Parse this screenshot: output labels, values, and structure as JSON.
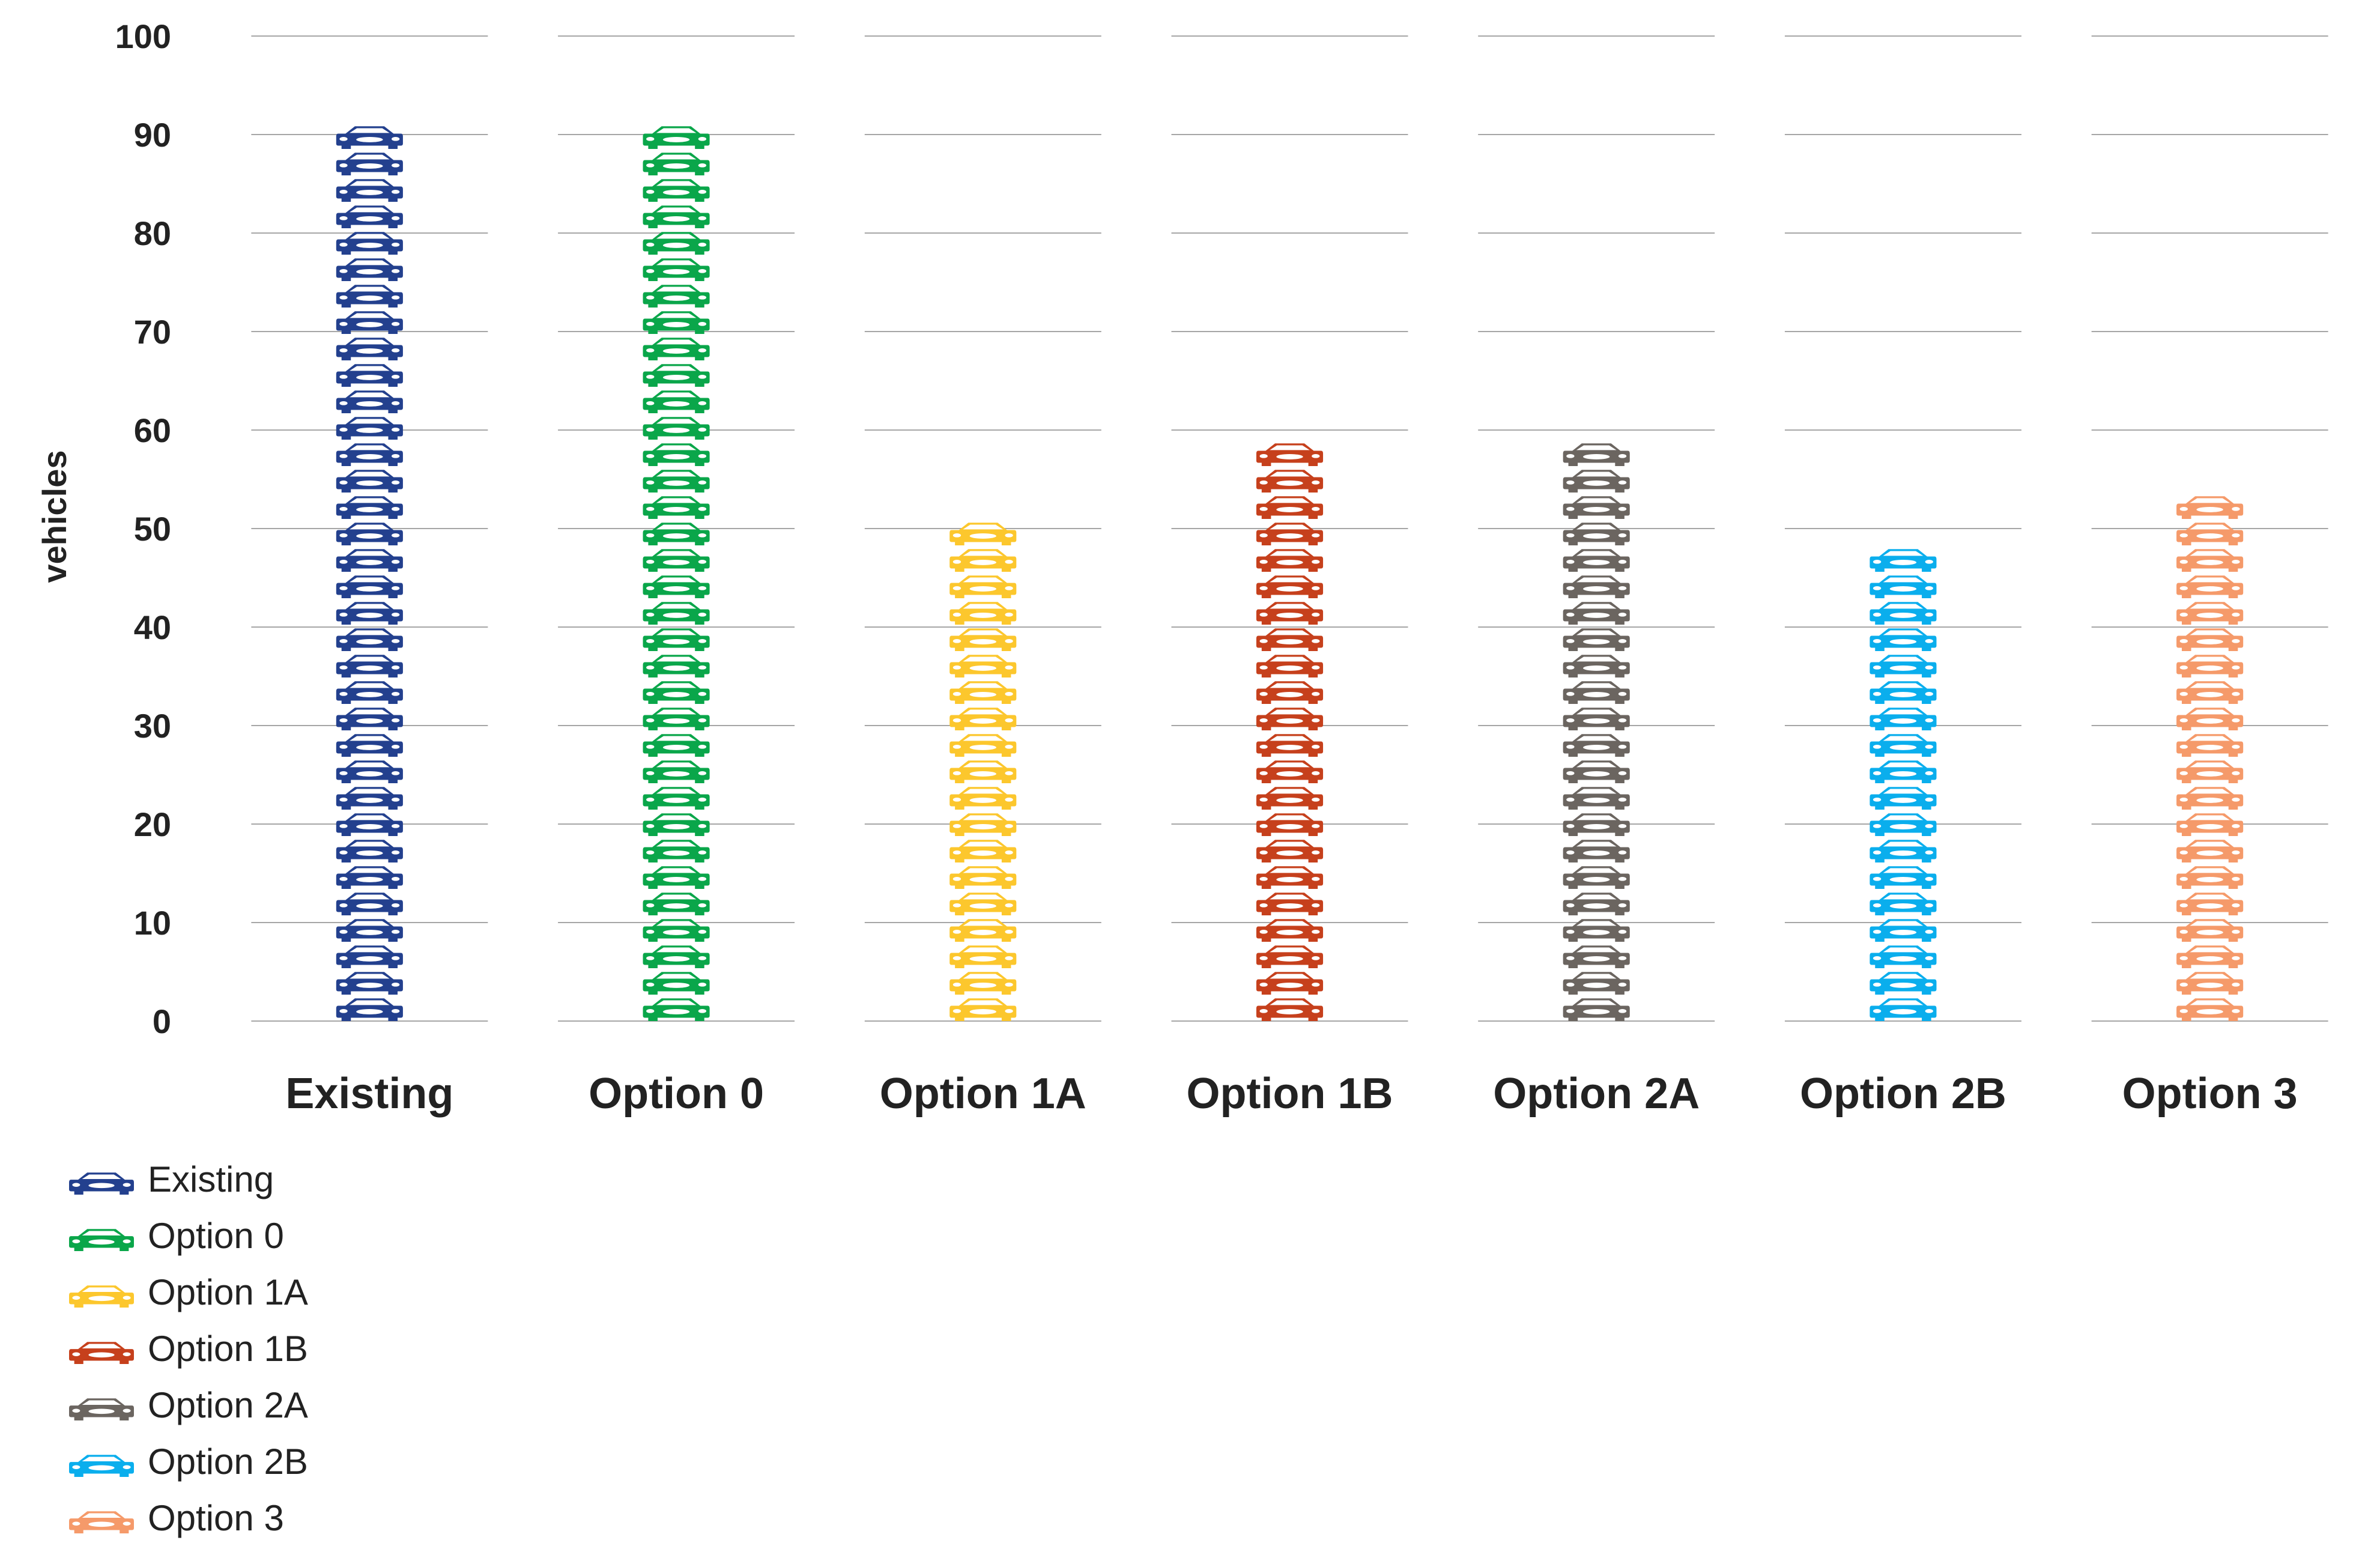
{
  "chart_data": {
    "type": "bar",
    "ylabel": "vehicles",
    "ylim": [
      0,
      100
    ],
    "yticks": [
      0,
      10,
      20,
      30,
      40,
      50,
      60,
      70,
      80,
      90,
      100
    ],
    "grid": true,
    "legend_position": "bottom-left",
    "mark": "stacked car pictograms",
    "categories": [
      "Existing",
      "Option 0",
      "Option 1A",
      "Option 1B",
      "Option 2A",
      "Option 2B",
      "Option 3"
    ],
    "series": [
      {
        "name": "Existing",
        "category": "Existing",
        "value": 90,
        "color": "#23408e"
      },
      {
        "name": "Option 0",
        "category": "Option 0",
        "value": 91,
        "color": "#0aa64a"
      },
      {
        "name": "Option 1A",
        "category": "Option 1A",
        "value": 50,
        "color": "#fcc72d"
      },
      {
        "name": "Option 1B",
        "category": "Option 1B",
        "value": 60,
        "color": "#c6401c"
      },
      {
        "name": "Option 2A",
        "category": "Option 2A",
        "value": 60,
        "color": "#6b6560"
      },
      {
        "name": "Option 2B",
        "category": "Option 2B",
        "value": 48,
        "color": "#0aaeed"
      },
      {
        "name": "Option 3",
        "category": "Option 3",
        "value": 53,
        "color": "#f59a6a"
      }
    ]
  }
}
